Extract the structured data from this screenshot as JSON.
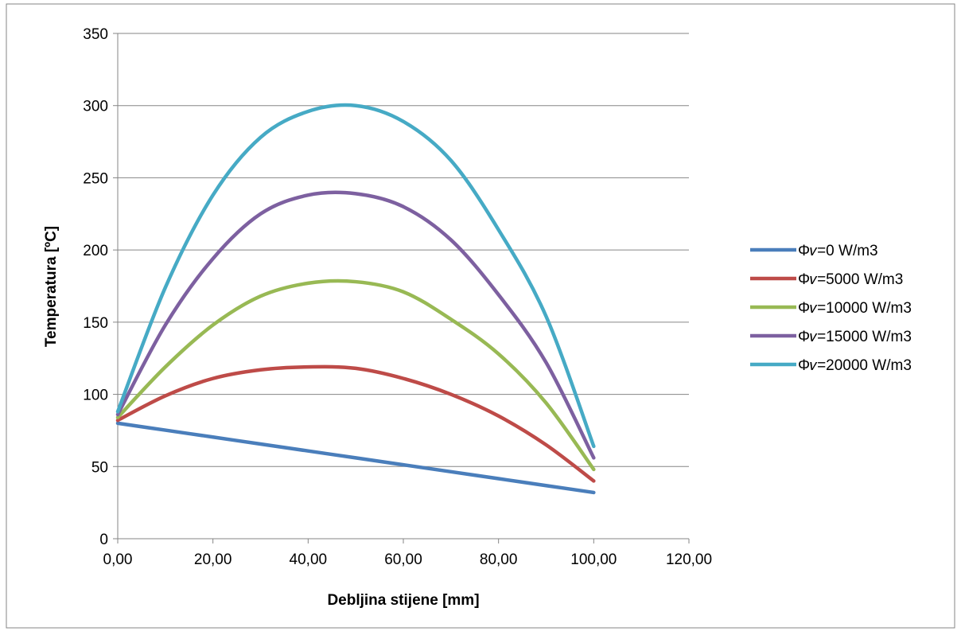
{
  "chart_data": {
    "type": "line",
    "title": "",
    "xlabel": "Debljina stijene [mm]",
    "ylabel": "Temperatura [ºC]",
    "xlim": [
      0,
      120
    ],
    "ylim": [
      0,
      350
    ],
    "x_ticks": [
      "0,00",
      "20,00",
      "40,00",
      "60,00",
      "80,00",
      "100,00",
      "120,00"
    ],
    "y_ticks": [
      "0",
      "50",
      "100",
      "150",
      "200",
      "250",
      "300",
      "350"
    ],
    "grid": "horizontal",
    "legend_position": "right",
    "x": [
      0,
      10,
      20,
      30,
      40,
      50,
      60,
      70,
      80,
      90,
      100
    ],
    "series": [
      {
        "name": "Φ𝑣=0 W/m3",
        "color": "#4a7ebb",
        "values": [
          80,
          75.2,
          70.4,
          65.6,
          60.8,
          56,
          51.2,
          46.4,
          41.6,
          36.8,
          32
        ]
      },
      {
        "name": "Φ𝑣=5000 W/m3",
        "color": "#be4b48",
        "values": [
          82,
          99,
          111,
          117,
          119,
          118,
          111,
          100,
          85,
          65,
          40
        ]
      },
      {
        "name": "Φ𝑣=10000 W/m3",
        "color": "#98b954",
        "values": [
          84,
          119,
          148,
          168,
          177,
          178,
          171,
          152,
          128,
          94,
          48
        ]
      },
      {
        "name": "Φ𝑣=15000 W/m3",
        "color": "#7d60a0",
        "values": [
          86,
          148,
          194,
          225,
          238,
          239,
          230,
          207,
          169,
          122,
          56
        ]
      },
      {
        "name": "Φ𝑣=20000 W/m3",
        "color": "#46aac5",
        "values": [
          88,
          174,
          238,
          278,
          296,
          300,
          289,
          262,
          214,
          154,
          64
        ]
      }
    ]
  }
}
